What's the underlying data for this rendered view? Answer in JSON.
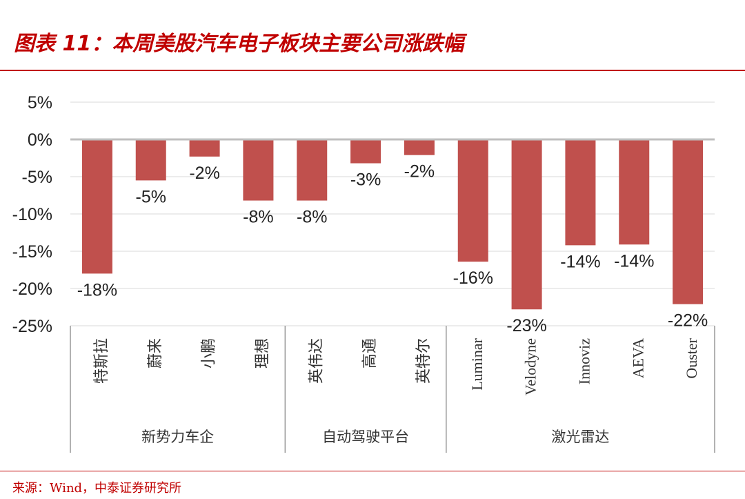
{
  "header": {
    "title": "图表 11：本周美股汽车电子板块主要公司涨跌幅"
  },
  "footer": {
    "source": "来源：Wind，中泰证券研究所"
  },
  "chart_data": {
    "type": "bar",
    "title": "本周美股汽车电子板块主要公司涨跌幅",
    "categories": [
      "特斯拉",
      "蔚来",
      "小鹏",
      "理想",
      "英伟达",
      "高通",
      "英特尔",
      "Luminar",
      "Velodyne",
      "Innoviz",
      "AEVA",
      "Ouster"
    ],
    "values": [
      -18,
      -5.5,
      -2.3,
      -8.2,
      -8.2,
      -3.2,
      -2.1,
      -16.4,
      -22.8,
      -14.2,
      -14.1,
      -22.1
    ],
    "data_labels": [
      "-18%",
      "-5%",
      "-2%",
      "-8%",
      "-8%",
      "-3%",
      "-2%",
      "-16%",
      "-23%",
      "-14%",
      "-14%",
      "-22%"
    ],
    "groups": [
      {
        "label": "新势力车企",
        "count": 4
      },
      {
        "label": "自动驾驶平台",
        "count": 3
      },
      {
        "label": "激光雷达",
        "count": 5
      }
    ],
    "y_ticks": [
      "5%",
      "0%",
      "-5%",
      "-10%",
      "-15%",
      "-20%",
      "-25%"
    ],
    "y_tick_values": [
      5,
      0,
      -5,
      -10,
      -15,
      -20,
      -25
    ],
    "ylim": [
      -25,
      5
    ],
    "xlabel": "",
    "ylabel": "",
    "grid": true,
    "colors": {
      "bar": "#c0504d",
      "grid": "#d9d9d9",
      "axis": "#bfbfbf",
      "accent": "#c00000"
    }
  }
}
